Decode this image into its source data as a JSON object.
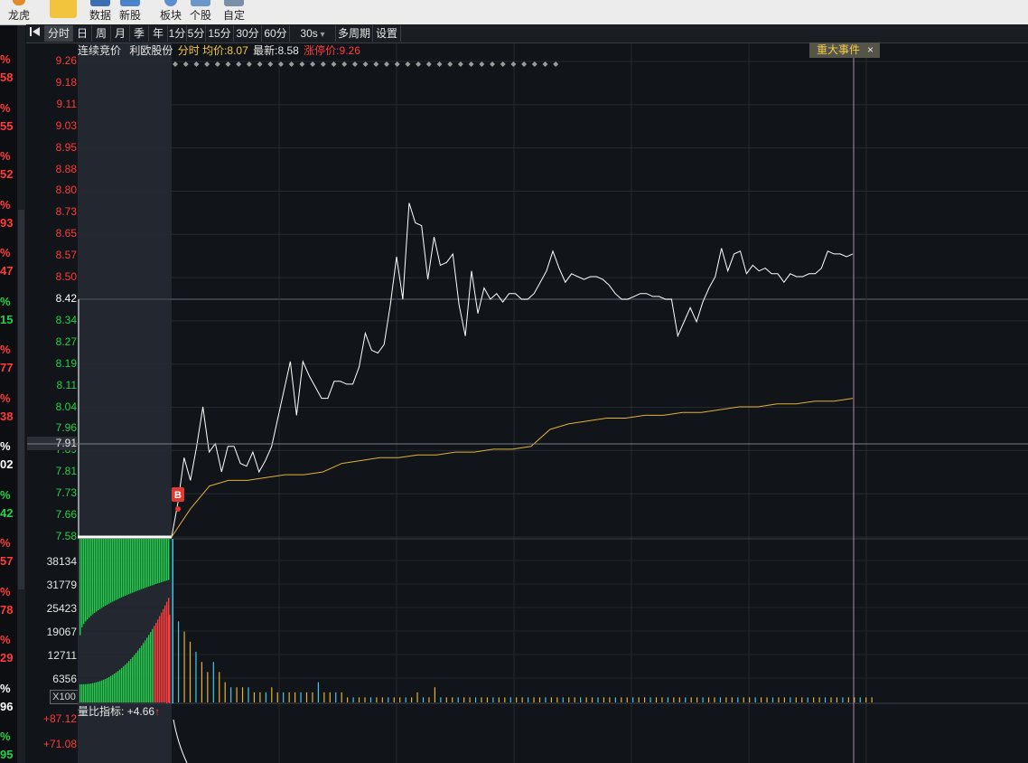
{
  "toolbar": {
    "items": [
      {
        "label": "龙虎"
      },
      {
        "label": "数据"
      },
      {
        "label": "新股"
      },
      {
        "label": "板块"
      },
      {
        "label": "个股"
      },
      {
        "label": "自定"
      }
    ]
  },
  "left_strip": {
    "items": [
      {
        "pct": "%",
        "val": "58",
        "color": "#ff3b3b"
      },
      {
        "pct": "%",
        "val": "55",
        "color": "#ff3b3b"
      },
      {
        "pct": "%",
        "val": "52",
        "color": "#ff3b3b"
      },
      {
        "pct": "%",
        "val": "93",
        "color": "#ff3b3b"
      },
      {
        "pct": "%",
        "val": "47",
        "color": "#ff3b3b"
      },
      {
        "pct": "%",
        "val": "15",
        "color": "#22d14b"
      },
      {
        "pct": "%",
        "val": "77",
        "color": "#ff3b3b"
      },
      {
        "pct": "%",
        "val": "38",
        "color": "#ff3b3b"
      },
      {
        "pct": "%",
        "val": "02",
        "color": "#ffffff"
      },
      {
        "pct": "%",
        "val": "42",
        "color": "#22d14b"
      },
      {
        "pct": "%",
        "val": "57",
        "color": "#ff3b3b"
      },
      {
        "pct": "%",
        "val": "78",
        "color": "#ff3b3b"
      },
      {
        "pct": "%",
        "val": "29",
        "color": "#ff3b3b"
      },
      {
        "pct": "%",
        "val": "96",
        "color": "#ffffff"
      },
      {
        "pct": "%",
        "val": "95",
        "color": "#22d14b"
      }
    ]
  },
  "periods": {
    "items": [
      {
        "label": "分时",
        "selected": true
      },
      {
        "label": "日"
      },
      {
        "label": "周"
      },
      {
        "label": "月"
      },
      {
        "label": "季"
      },
      {
        "label": "年"
      },
      {
        "label": "1分"
      },
      {
        "label": "5分"
      },
      {
        "label": "15分"
      },
      {
        "label": "30分"
      },
      {
        "label": "60分"
      },
      {
        "label": "30s"
      },
      {
        "label": "多周期"
      },
      {
        "label": "设置"
      }
    ]
  },
  "info": {
    "auction": "连续竞价",
    "stock_name": "利欧股份",
    "mode": "分时",
    "avg_label": "均价:",
    "avg_value": "8.07",
    "latest_label": "最新:",
    "latest_value": "8.58",
    "limit_label": "涨停价:",
    "limit_value": "9.26"
  },
  "event_tag": {
    "label": "重大事件",
    "close": "×"
  },
  "price_axis": [
    {
      "label": "9.26",
      "color": "#ff3b3b"
    },
    {
      "label": "9.18",
      "color": "#ff3b3b"
    },
    {
      "label": "9.11",
      "color": "#ff3b3b"
    },
    {
      "label": "9.03",
      "color": "#ff3b3b"
    },
    {
      "label": "8.95",
      "color": "#ff3b3b"
    },
    {
      "label": "8.88",
      "color": "#ff3b3b"
    },
    {
      "label": "8.80",
      "color": "#ff3b3b"
    },
    {
      "label": "8.73",
      "color": "#ff3b3b"
    },
    {
      "label": "8.65",
      "color": "#ff3b3b"
    },
    {
      "label": "8.57",
      "color": "#ff3b3b"
    },
    {
      "label": "8.50",
      "color": "#ff3b3b"
    },
    {
      "label": "8.42",
      "color": "#ffffff"
    },
    {
      "label": "8.34",
      "color": "#22d14b"
    },
    {
      "label": "8.27",
      "color": "#22d14b"
    },
    {
      "label": "8.19",
      "color": "#22d14b"
    },
    {
      "label": "8.11",
      "color": "#22d14b"
    },
    {
      "label": "8.04",
      "color": "#22d14b"
    },
    {
      "label": "7.96",
      "color": "#22d14b"
    },
    {
      "label": "7.89",
      "color": "#22d14b"
    },
    {
      "label": "7.81",
      "color": "#22d14b"
    },
    {
      "label": "7.73",
      "color": "#22d14b"
    },
    {
      "label": "7.66",
      "color": "#22d14b"
    },
    {
      "label": "7.58",
      "color": "#22d14b"
    }
  ],
  "crosshair_price": "7.91",
  "volume_axis": [
    "38134",
    "31779",
    "25423",
    "19067",
    "12711",
    "6356"
  ],
  "volume_unit": "X100",
  "indicator": {
    "label": "量比指标:",
    "value": "+4.66",
    "arrow": "↑"
  },
  "indicator_axis": [
    "+87.12",
    "+71.08"
  ],
  "buy_marker": "B",
  "chart_data": {
    "type": "line",
    "price_series": {
      "y": [
        8.42,
        7.58,
        7.58,
        7.7,
        7.86,
        7.78,
        7.9,
        8.04,
        7.88,
        7.91,
        7.81,
        7.9,
        7.9,
        7.84,
        7.83,
        7.88,
        7.81,
        7.85,
        7.9,
        8.0,
        8.1,
        8.2,
        8.01,
        8.2,
        8.15,
        8.11,
        8.07,
        8.07,
        8.13,
        8.13,
        8.12,
        8.12,
        8.18,
        8.3,
        8.24,
        8.23,
        8.26,
        8.4,
        8.57,
        8.42,
        8.76,
        8.69,
        8.68,
        8.49,
        8.64,
        8.54,
        8.55,
        8.58,
        8.4,
        8.29,
        8.52,
        8.37,
        8.46,
        8.42,
        8.44,
        8.41,
        8.44,
        8.44,
        8.42,
        8.42,
        8.44,
        8.48,
        8.52,
        8.59,
        8.53,
        8.48,
        8.51,
        8.5,
        8.49,
        8.5,
        8.5,
        8.49,
        8.47,
        8.44,
        8.42,
        8.42,
        8.43,
        8.44,
        8.44,
        8.43,
        8.43,
        8.42,
        8.42,
        8.29,
        8.34,
        8.39,
        8.34,
        8.41,
        8.46,
        8.5,
        8.6,
        8.52,
        8.58,
        8.59,
        8.51,
        8.54,
        8.52,
        8.53,
        8.51,
        8.51,
        8.48,
        8.51,
        8.5,
        8.5,
        8.51,
        8.51,
        8.53,
        8.59,
        8.58,
        8.58,
        8.57,
        8.58
      ]
    },
    "avg_series": {
      "y": [
        7.58,
        7.68,
        7.76,
        7.78,
        7.78,
        7.79,
        7.8,
        7.8,
        7.81,
        7.84,
        7.85,
        7.86,
        7.86,
        7.87,
        7.87,
        7.88,
        7.88,
        7.89,
        7.89,
        7.9,
        7.96,
        7.98,
        7.99,
        8.0,
        8.0,
        8.01,
        8.01,
        8.02,
        8.02,
        8.03,
        8.04,
        8.04,
        8.05,
        8.05,
        8.06,
        8.06,
        8.07
      ]
    },
    "volume_bars": [
      16,
      14,
      12,
      10,
      8,
      6,
      8,
      6,
      4,
      3,
      3,
      3,
      3,
      2,
      2,
      2,
      3,
      2,
      2,
      2,
      2,
      2,
      2,
      2,
      4,
      2,
      2,
      2,
      2,
      1,
      1,
      1,
      1,
      1,
      1,
      1,
      1,
      1,
      1,
      1,
      1,
      2,
      1,
      1,
      3,
      1,
      1,
      1,
      1,
      1,
      1,
      1,
      1,
      1,
      1,
      1,
      1,
      1,
      1,
      1,
      1,
      1,
      1,
      1,
      1,
      1,
      1,
      1,
      1,
      1,
      1,
      1,
      1,
      1,
      1,
      1,
      1,
      1,
      1,
      1,
      1,
      1,
      1,
      1,
      1,
      1,
      1,
      1,
      1,
      1,
      1,
      1,
      1,
      1,
      1,
      1,
      1,
      1,
      1,
      1,
      1,
      1,
      1,
      1,
      1,
      1,
      1,
      1,
      1,
      1,
      1,
      1,
      1,
      1,
      1,
      1,
      1,
      1,
      1,
      1
    ],
    "ylim_price": [
      7.58,
      9.26
    ],
    "volume_max": 38134,
    "colors": {
      "price_line": "#ffffff",
      "avg_line": "#e0b23a",
      "up": "#ff3b3b",
      "down": "#22d14b",
      "neutral": "#3fc7e8",
      "vol_yellow": "#e0b23a"
    }
  }
}
